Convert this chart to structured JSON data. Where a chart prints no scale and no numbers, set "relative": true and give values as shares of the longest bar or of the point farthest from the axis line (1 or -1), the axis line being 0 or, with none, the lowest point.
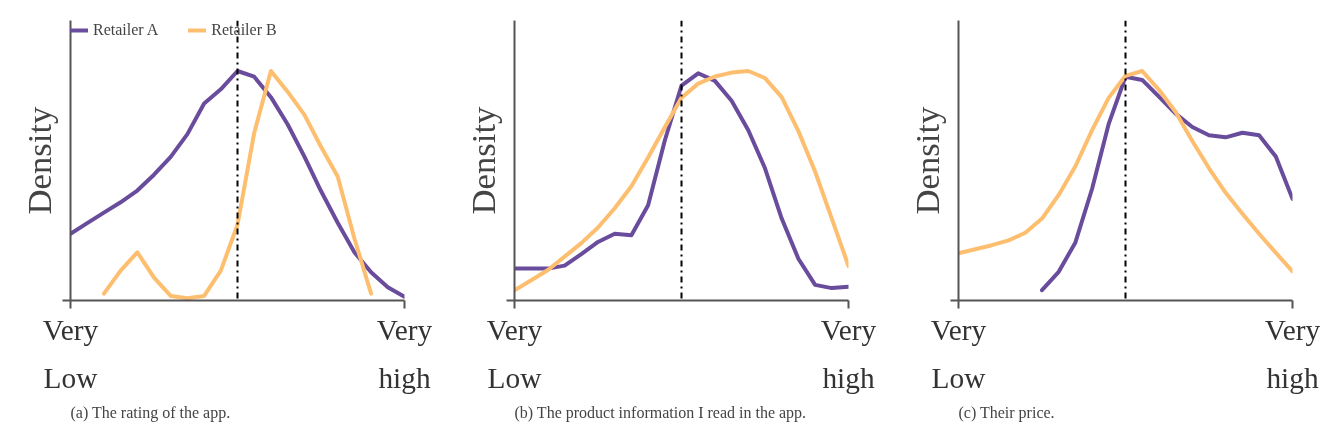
{
  "chart_data": [
    {
      "type": "line",
      "title": "(a) The rating of the app.",
      "ylabel": "Density",
      "relative": true,
      "tick_labels": "x",
      "legend": "top left",
      "categories": [
        "Very\nLow",
        null,
        null,
        null,
        null,
        null,
        null,
        null,
        null,
        null,
        null,
        null,
        null,
        null,
        null,
        null,
        null,
        null,
        null,
        null,
        "Very\nhigh"
      ],
      "series": [
        {
          "name": "Retailer A",
          "color": "#6a4c9c",
          "values": [
            0.291,
            0.337,
            0.383,
            0.428,
            0.479,
            0.548,
            0.626,
            0.725,
            0.858,
            0.92,
            1.0,
            0.975,
            0.886,
            0.768,
            0.628,
            0.477,
            0.339,
            0.21,
            0.123,
            0.058,
            0.016
          ]
        },
        {
          "name": "Retailer B",
          "color": "#fdbf6f",
          "values": [
            null,
            null,
            0.03,
            0.13,
            0.21,
            0.1,
            0.02,
            0.01,
            0.02,
            0.13,
            0.33,
            0.73,
            1.0,
            0.91,
            0.81,
            0.67,
            0.54,
            0.27,
            0.03,
            null,
            null
          ]
        }
      ]
    },
    {
      "type": "line",
      "title": "(b) The product information I read in the app.",
      "ylabel": "Density",
      "relative": true,
      "tick_labels": "x",
      "categories": [
        "Very\nLow",
        null,
        null,
        null,
        null,
        null,
        null,
        null,
        null,
        null,
        null,
        null,
        null,
        null,
        null,
        null,
        null,
        null,
        null,
        null,
        "Very\nhigh"
      ],
      "series": [
        {
          "color": "#6a4c9c",
          "values": [
            0.139,
            0.139,
            0.139,
            0.152,
            0.202,
            0.255,
            0.291,
            0.284,
            0.415,
            0.697,
            0.936,
            0.99,
            0.957,
            0.87,
            0.742,
            0.576,
            0.357,
            0.182,
            0.068,
            0.054,
            0.06
          ]
        },
        {
          "color": "#fdbf6f",
          "values": [
            0.044,
            0.088,
            0.133,
            0.191,
            0.25,
            0.318,
            0.402,
            0.498,
            0.623,
            0.755,
            0.883,
            0.945,
            0.976,
            0.993,
            1.0,
            0.969,
            0.886,
            0.738,
            0.562,
            0.357,
            0.15
          ]
        }
      ]
    },
    {
      "type": "line",
      "title": "(c) Their price.",
      "ylabel": "Density",
      "relative": true,
      "tick_labels": "x",
      "categories": [
        "Very\nLow",
        null,
        null,
        null,
        null,
        null,
        null,
        null,
        null,
        null,
        null,
        null,
        null,
        null,
        null,
        null,
        null,
        null,
        null,
        null,
        "Very\nhigh"
      ],
      "series": [
        {
          "color": "#6a4c9c",
          "values": [
            null,
            null,
            null,
            null,
            null,
            0.045,
            0.125,
            0.253,
            0.487,
            0.771,
            0.975,
            0.961,
            0.888,
            0.814,
            0.756,
            0.72,
            0.711,
            0.731,
            0.72,
            0.627,
            0.443
          ]
        },
        {
          "color": "#fdbf6f",
          "values": [
            0.206,
            0.223,
            0.241,
            0.262,
            0.295,
            0.357,
            0.46,
            0.585,
            0.742,
            0.884,
            0.979,
            1.0,
            0.918,
            0.821,
            0.695,
            0.576,
            0.469,
            0.378,
            0.291,
            0.208,
            0.127
          ]
        }
      ]
    }
  ]
}
